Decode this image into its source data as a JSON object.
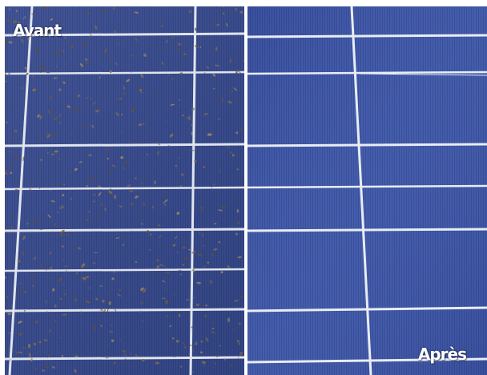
{
  "before": {
    "label": "Avant",
    "cell_color": "#3b4f92",
    "soil_color": "#7a6a4a"
  },
  "after": {
    "label": "Après",
    "cell_color": "#3d55a6"
  },
  "grid_line_color": "#e6eaf2"
}
